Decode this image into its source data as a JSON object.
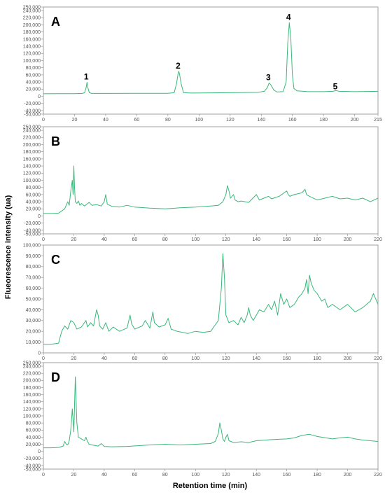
{
  "figure": {
    "ylabel": "Flueorescence intensity (ua)",
    "xlabel": "Retention time (min)",
    "line_color": "#3ab87a"
  },
  "chart_data": [
    {
      "type": "line",
      "panel_label": "A",
      "xlim": [
        0,
        215
      ],
      "ylim": [
        -50000,
        250000
      ],
      "x_ticks": [
        0,
        20,
        40,
        60,
        80,
        100,
        120,
        140,
        160,
        180,
        200,
        215
      ],
      "y_ticks": [
        -50000,
        -40000,
        -20000,
        0,
        20000,
        40000,
        60000,
        80000,
        100000,
        120000,
        140000,
        160000,
        180000,
        200000,
        220000,
        240000,
        250000
      ],
      "peak_labels": [
        {
          "text": "1",
          "x": 28,
          "y": 39000
        },
        {
          "text": "2",
          "x": 87,
          "y": 70000
        },
        {
          "text": "3",
          "x": 145,
          "y": 37000
        },
        {
          "text": "4",
          "x": 158,
          "y": 206000
        },
        {
          "text": "5",
          "x": 188,
          "y": 12000
        }
      ],
      "x": [
        0,
        10,
        20,
        25,
        26.5,
        27.5,
        28,
        28.5,
        29.5,
        31,
        40,
        60,
        80,
        84,
        85.5,
        86.5,
        87,
        87.5,
        88.5,
        90,
        95,
        120,
        138,
        142,
        144,
        145,
        146,
        148,
        150,
        154,
        156,
        157,
        158,
        159,
        160,
        161,
        163,
        170,
        180,
        186,
        188,
        190,
        200,
        215
      ],
      "y": [
        7000,
        7500,
        7500,
        8000,
        10000,
        25000,
        39000,
        25000,
        10000,
        8000,
        8000,
        8500,
        8500,
        10000,
        35000,
        62000,
        70000,
        62000,
        35000,
        10000,
        9000,
        10000,
        11000,
        14000,
        25000,
        37000,
        33000,
        18000,
        12000,
        13000,
        40000,
        150000,
        206000,
        160000,
        60000,
        22000,
        15000,
        13000,
        13000,
        14000,
        16000,
        14000,
        13000,
        14000
      ]
    },
    {
      "type": "line",
      "panel_label": "B",
      "xlim": [
        0,
        220
      ],
      "ylim": [
        -50000,
        250000
      ],
      "x_ticks": [
        0,
        20,
        40,
        60,
        80,
        100,
        120,
        140,
        160,
        180,
        200,
        220
      ],
      "y_ticks": [
        -50000,
        -40000,
        -20000,
        0,
        20000,
        40000,
        60000,
        80000,
        100000,
        120000,
        140000,
        160000,
        180000,
        200000,
        220000,
        240000,
        250000
      ],
      "x": [
        0,
        5,
        10,
        14,
        16,
        17,
        18,
        19,
        19.5,
        20,
        20.5,
        21,
        22,
        23,
        24,
        25,
        27,
        30,
        32,
        35,
        38,
        40,
        41,
        42,
        45,
        50,
        55,
        60,
        70,
        80,
        90,
        100,
        110,
        115,
        118,
        120,
        121,
        122,
        123,
        124,
        125,
        126,
        128,
        130,
        135,
        140,
        142,
        145,
        148,
        150,
        155,
        160,
        161,
        162,
        165,
        170,
        172,
        173,
        175,
        180,
        185,
        190,
        195,
        200,
        205,
        210,
        215,
        220
      ],
      "y": [
        7000,
        7000,
        8000,
        20000,
        40000,
        30000,
        70000,
        100000,
        60000,
        140000,
        80000,
        40000,
        35000,
        42000,
        30000,
        35000,
        28000,
        38000,
        30000,
        32000,
        28000,
        40000,
        60000,
        33000,
        27000,
        25000,
        30000,
        25000,
        22000,
        20000,
        23000,
        25000,
        28000,
        30000,
        40000,
        60000,
        85000,
        70000,
        50000,
        55000,
        60000,
        45000,
        40000,
        42000,
        38000,
        60000,
        45000,
        50000,
        55000,
        48000,
        55000,
        70000,
        60000,
        55000,
        60000,
        65000,
        75000,
        60000,
        55000,
        45000,
        50000,
        55000,
        48000,
        50000,
        45000,
        50000,
        40000,
        50000
      ]
    },
    {
      "type": "line",
      "panel_label": "C",
      "xlim": [
        0,
        220
      ],
      "ylim": [
        0,
        100000
      ],
      "x_ticks": [
        0,
        20,
        40,
        60,
        80,
        100,
        120,
        140,
        160,
        180,
        200,
        220
      ],
      "y_ticks": [
        0,
        10000,
        20000,
        30000,
        40000,
        50000,
        60000,
        70000,
        80000,
        90000,
        100000
      ],
      "x": [
        0,
        5,
        10,
        12,
        14,
        16,
        18,
        20,
        22,
        25,
        28,
        29,
        31,
        33,
        35,
        36,
        37,
        39,
        41,
        43,
        46,
        50,
        55,
        57,
        58,
        60,
        65,
        67,
        70,
        72,
        73,
        76,
        80,
        82,
        84,
        88,
        95,
        100,
        105,
        110,
        113,
        115,
        117,
        118,
        119,
        120,
        122,
        125,
        128,
        130,
        132,
        134,
        135,
        136,
        138,
        140,
        142,
        145,
        148,
        150,
        152,
        154,
        156,
        158,
        160,
        162,
        165,
        168,
        170,
        172,
        173,
        174,
        175,
        176,
        178,
        180,
        183,
        185,
        187,
        190,
        195,
        200,
        205,
        210,
        215,
        217,
        220
      ],
      "y": [
        8000,
        8000,
        9000,
        20000,
        25000,
        22000,
        30000,
        28000,
        22000,
        24000,
        30000,
        24000,
        28000,
        25000,
        40000,
        35000,
        25000,
        22000,
        28000,
        20000,
        24000,
        20000,
        23000,
        35000,
        27000,
        22000,
        25000,
        30000,
        23000,
        38000,
        28000,
        24000,
        26000,
        32000,
        22000,
        20000,
        18000,
        20000,
        19000,
        20000,
        26000,
        30000,
        60000,
        92000,
        70000,
        35000,
        28000,
        30000,
        26000,
        33000,
        28000,
        35000,
        42000,
        35000,
        30000,
        35000,
        40000,
        38000,
        45000,
        40000,
        48000,
        35000,
        55000,
        45000,
        50000,
        42000,
        45000,
        52000,
        55000,
        60000,
        68000,
        55000,
        72000,
        65000,
        58000,
        55000,
        48000,
        50000,
        42000,
        45000,
        40000,
        45000,
        38000,
        42000,
        48000,
        55000,
        45000
      ]
    },
    {
      "type": "line",
      "panel_label": "D",
      "xlim": [
        0,
        220
      ],
      "ylim": [
        -50000,
        250000
      ],
      "x_ticks": [
        0,
        20,
        40,
        60,
        80,
        100,
        120,
        140,
        160,
        180,
        200,
        220
      ],
      "y_ticks": [
        -50000,
        -40000,
        -20000,
        0,
        20000,
        40000,
        60000,
        80000,
        100000,
        120000,
        140000,
        160000,
        180000,
        200000,
        220000,
        240000,
        250000
      ],
      "x": [
        0,
        5,
        10,
        13,
        14,
        15,
        16,
        17,
        18,
        19,
        20,
        21,
        22,
        23,
        25,
        27,
        28,
        29,
        30,
        32,
        36,
        38,
        40,
        45,
        55,
        70,
        80,
        90,
        100,
        110,
        113,
        115,
        116,
        117,
        118,
        119,
        120,
        121,
        122,
        125,
        130,
        135,
        140,
        150,
        160,
        165,
        170,
        175,
        180,
        190,
        195,
        200,
        205,
        210,
        215,
        220
      ],
      "y": [
        10000,
        10000,
        11000,
        15000,
        28000,
        20000,
        18000,
        30000,
        60000,
        120000,
        55000,
        210000,
        80000,
        40000,
        35000,
        30000,
        40000,
        28000,
        20000,
        18000,
        15000,
        22000,
        14000,
        13000,
        14000,
        18000,
        20000,
        18000,
        20000,
        22000,
        28000,
        50000,
        80000,
        60000,
        35000,
        28000,
        40000,
        48000,
        30000,
        25000,
        27000,
        25000,
        30000,
        33000,
        35000,
        38000,
        45000,
        48000,
        42000,
        35000,
        38000,
        40000,
        35000,
        32000,
        30000,
        28000
      ]
    }
  ]
}
